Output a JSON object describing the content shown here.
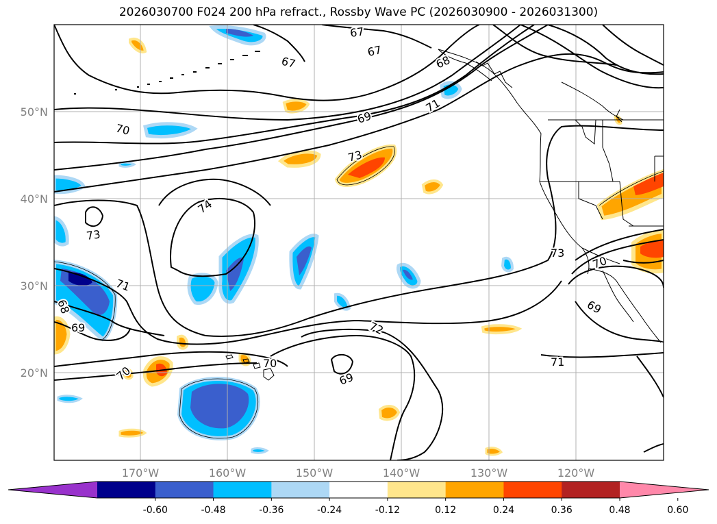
{
  "title": "2026030700 F024 200 hPa refract., Rossby Wave PC (2026030900 - 2026031300)",
  "lat_labels": [
    "50°N",
    "40°N",
    "30°N",
    "20°N"
  ],
  "lon_labels": [
    "170°W",
    "160°W",
    "150°W",
    "140°W",
    "130°W",
    "120°W"
  ],
  "contour_labels": [
    "67",
    "67",
    "67",
    "68",
    "71",
    "69",
    "70",
    "73",
    "74",
    "73",
    "71",
    "68",
    "69",
    "70",
    "72",
    "69",
    "73",
    "70",
    "69",
    "71"
  ],
  "colorbar": {
    "ticks": [
      "-0.60",
      "-0.48",
      "-0.36",
      "-0.24",
      "-0.12",
      "0.12",
      "0.24",
      "0.36",
      "0.48",
      "0.60"
    ],
    "colors": [
      "#9932cc",
      "#00008b",
      "#3a5fcd",
      "#00bfff",
      "#add8f5",
      "#ffffff",
      "#ffe68c",
      "#ffa500",
      "#ff4500",
      "#b22222",
      "#ff88aa"
    ]
  }
}
